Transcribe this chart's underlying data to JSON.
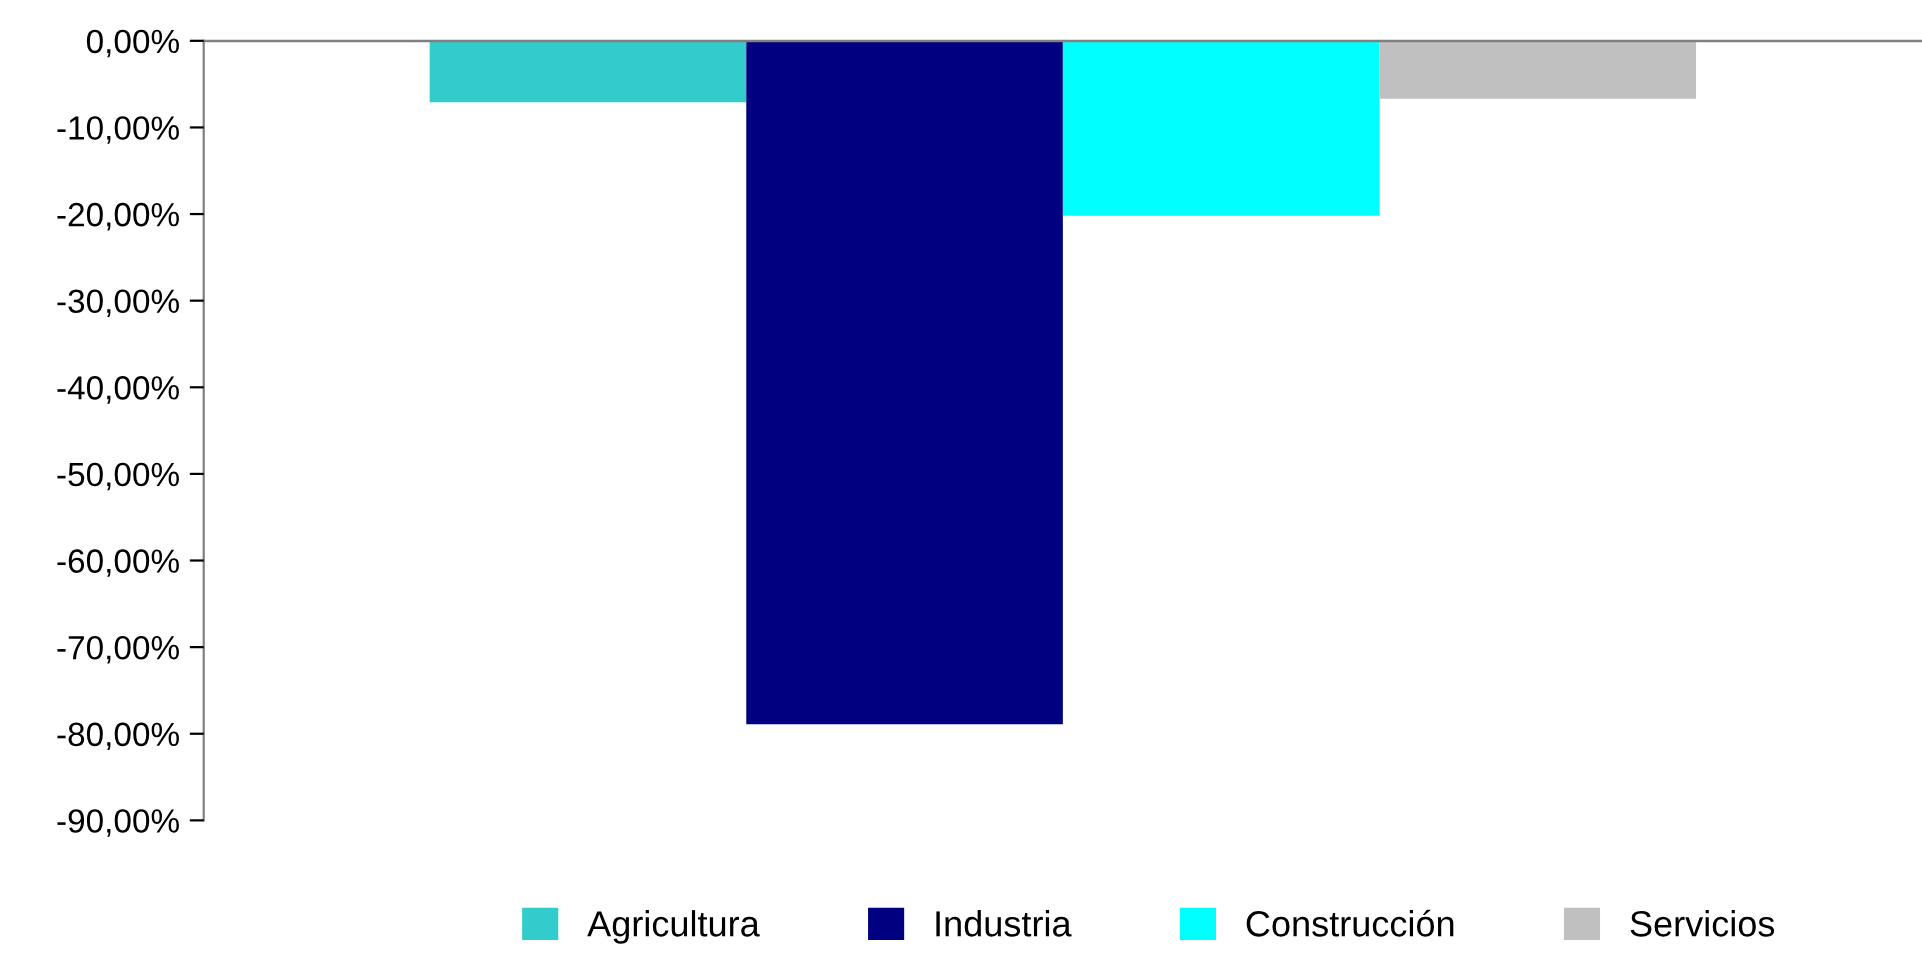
{
  "chart_data": {
    "type": "bar",
    "categories": [
      null
    ],
    "series": [
      {
        "name": "Agricultura",
        "color": "#33cccc",
        "values": [
          -7.1
        ]
      },
      {
        "name": "Industria",
        "color": "#000080",
        "values": [
          -78.9
        ]
      },
      {
        "name": "Construcción",
        "color": "#00ffff",
        "values": [
          -20.2
        ]
      },
      {
        "name": "Servicios",
        "color": "#c0c0c0",
        "values": [
          -6.7
        ]
      }
    ],
    "ylim": [
      -90,
      0
    ],
    "yticks": [
      {
        "value": 0,
        "label": "0,00%"
      },
      {
        "value": -10,
        "label": "-10,00%"
      },
      {
        "value": -20,
        "label": "-20,00%"
      },
      {
        "value": -30,
        "label": "-30,00%"
      },
      {
        "value": -40,
        "label": "-40,00%"
      },
      {
        "value": -50,
        "label": "-50,00%"
      },
      {
        "value": -60,
        "label": "-60,00%"
      },
      {
        "value": -70,
        "label": "-70,00%"
      },
      {
        "value": -80,
        "label": "-80,00%"
      },
      {
        "value": -90,
        "label": "-90,00%"
      }
    ],
    "grid": false,
    "legend": "bottom"
  }
}
